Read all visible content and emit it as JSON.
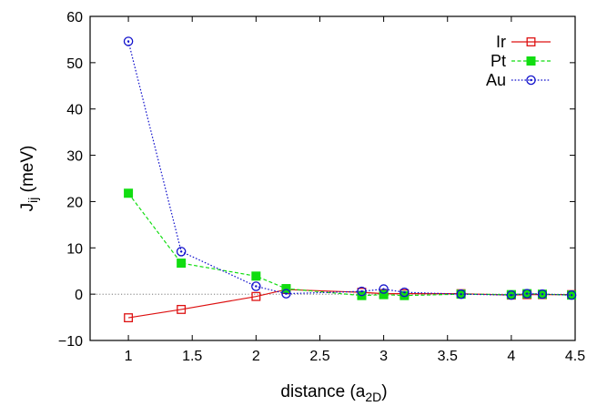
{
  "chart_data": {
    "type": "line",
    "xlabel_main": "distance (a",
    "xlabel_sub": "2D",
    "xlabel_tail": ")",
    "ylabel_main": "J",
    "ylabel_sub": "ij",
    "ylabel_tail": " (meV)",
    "xlim": [
      0.7,
      4.5
    ],
    "ylim": [
      -10,
      60
    ],
    "xticks": [
      1,
      1.5,
      2,
      2.5,
      3,
      3.5,
      4,
      4.5
    ],
    "xtick_labels": [
      "1",
      "1.5",
      "2",
      "2.5",
      "3",
      "3.5",
      "4",
      "4.5"
    ],
    "yticks": [
      -10,
      0,
      10,
      20,
      30,
      40,
      50,
      60
    ],
    "ytick_labels": [
      "−10",
      "0",
      "10",
      "20",
      "30",
      "40",
      "50",
      "60"
    ],
    "zero_line": true,
    "grid": false,
    "legend_position": "top-right",
    "x": [
      1,
      1.414,
      2,
      2.236,
      2.828,
      3,
      3.162,
      3.606,
      4,
      4.123,
      4.243,
      4.472
    ],
    "series": [
      {
        "name": "Ir",
        "color": "#dd1111",
        "line_style": "solid",
        "marker": "open-square",
        "values": [
          -5.1,
          -3.3,
          -0.5,
          1.0,
          0.4,
          0.1,
          0.1,
          0.1,
          -0.2,
          -0.1,
          -0.1,
          -0.1
        ]
      },
      {
        "name": "Pt",
        "color": "#11dd11",
        "line_style": "dashed",
        "marker": "filled-square",
        "values": [
          21.8,
          6.7,
          3.9,
          1.2,
          -0.3,
          -0.1,
          -0.3,
          0.0,
          -0.1,
          0.1,
          0.0,
          -0.2
        ]
      },
      {
        "name": "Au",
        "color": "#1111cc",
        "line_style": "dotted",
        "marker": "open-circle",
        "values": [
          54.6,
          9.2,
          1.7,
          0.1,
          0.6,
          1.1,
          0.4,
          0.0,
          -0.2,
          0.1,
          0.0,
          -0.2
        ]
      }
    ]
  }
}
